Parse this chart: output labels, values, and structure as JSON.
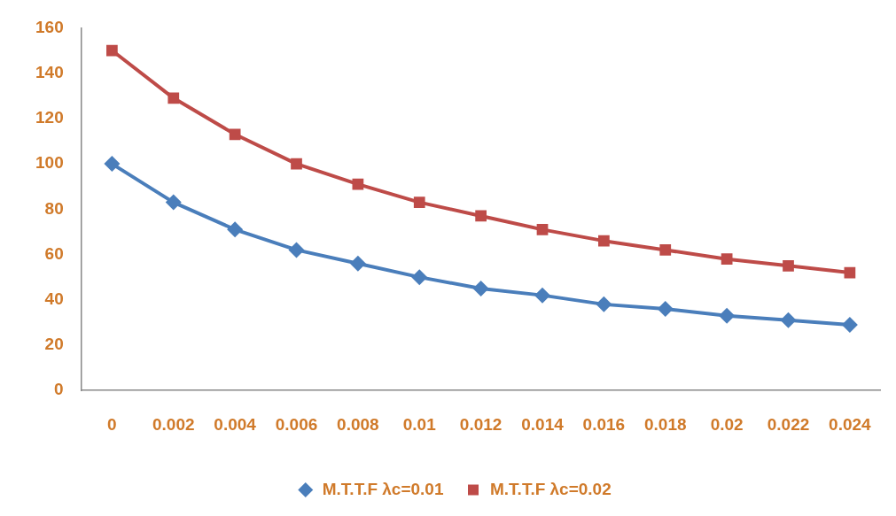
{
  "chart_data": {
    "type": "line",
    "categories": [
      "0",
      "0.002",
      "0.004",
      "0.006",
      "0.008",
      "0.01",
      "0.012",
      "0.014",
      "0.016",
      "0.018",
      "0.02",
      "0.022",
      "0.024"
    ],
    "series": [
      {
        "name": "M.T.T.F λc=0.01",
        "color": "#4a7ebb",
        "marker": "diamond",
        "values": [
          100,
          83,
          71,
          62,
          56,
          50,
          45,
          42,
          38,
          36,
          33,
          31,
          29
        ]
      },
      {
        "name": "M.T.T.F λc=0.02",
        "color": "#be4b48",
        "marker": "square",
        "values": [
          150,
          129,
          113,
          100,
          91,
          83,
          77,
          71,
          66,
          62,
          58,
          55,
          52
        ]
      }
    ],
    "ylim": [
      0,
      160
    ],
    "yticks": [
      0,
      20,
      40,
      60,
      80,
      100,
      120,
      140,
      160
    ],
    "grid": false,
    "legend": "bottom"
  }
}
